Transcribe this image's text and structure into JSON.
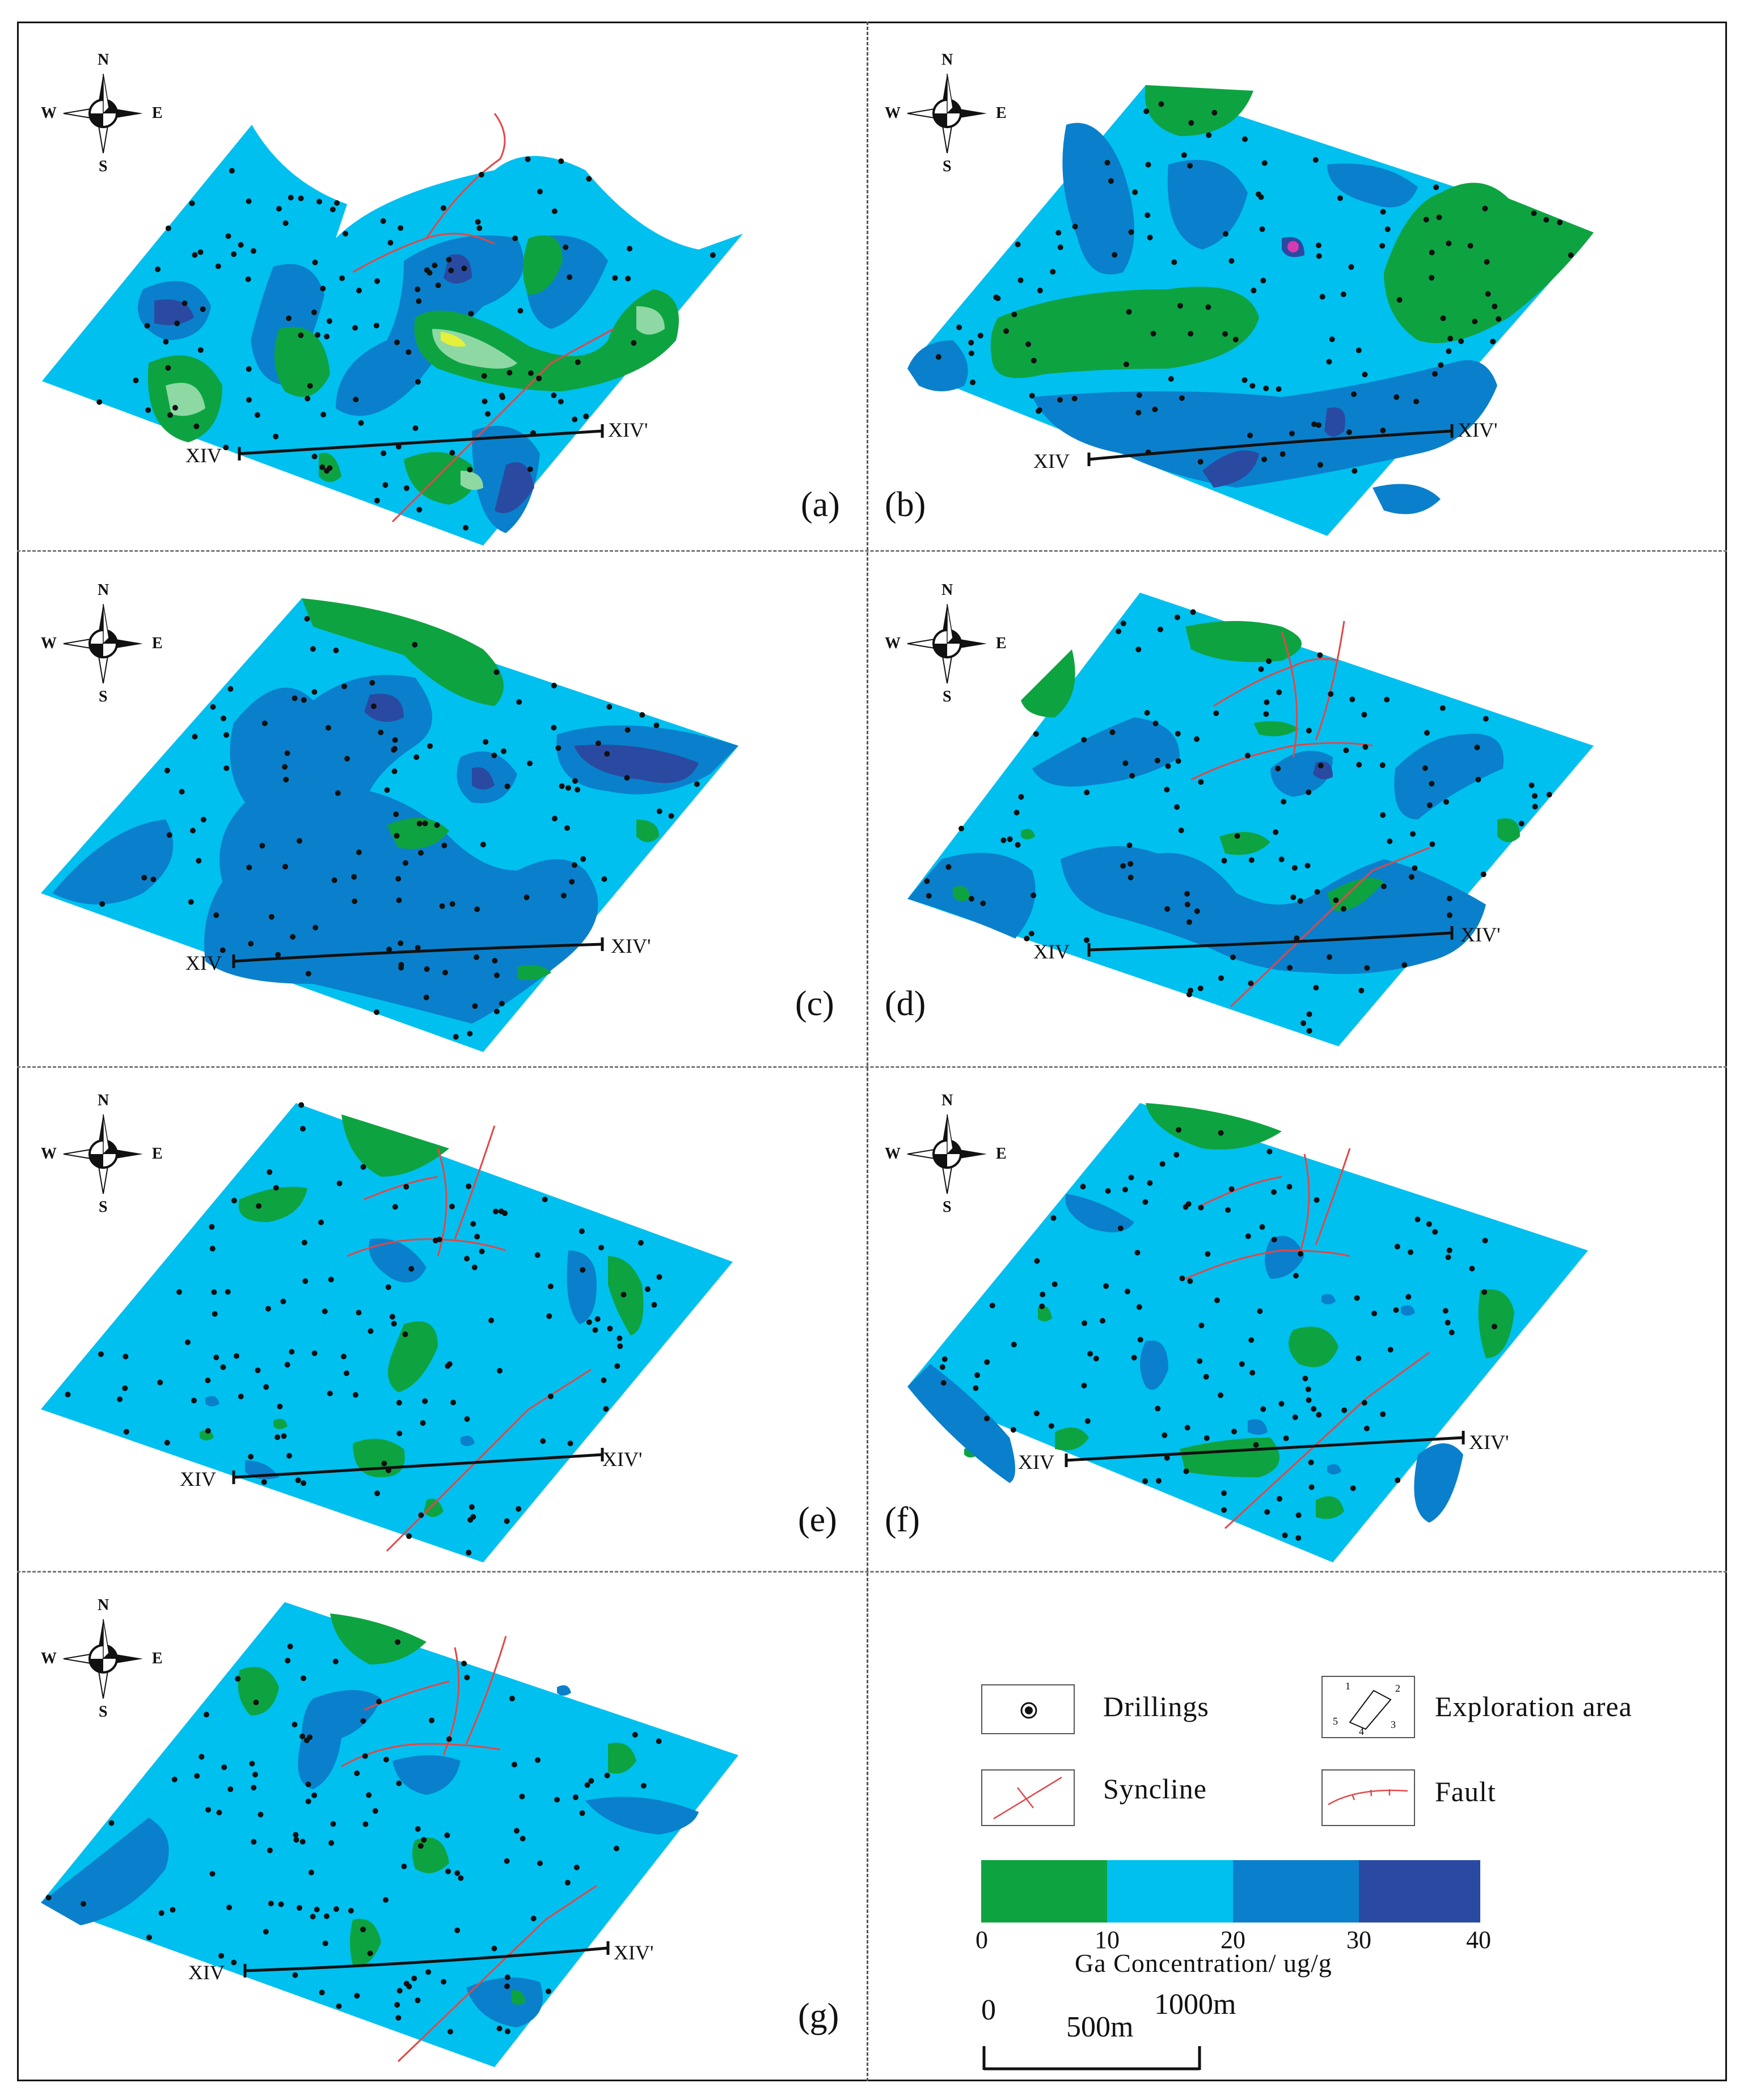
{
  "compass": {
    "n": "N",
    "s": "S",
    "w": "W",
    "e": "E"
  },
  "section_line": {
    "start": "XIV",
    "end": "XIV'"
  },
  "panels": [
    {
      "label": "(a)"
    },
    {
      "label": "(b)"
    },
    {
      "label": "(c)"
    },
    {
      "label": "(d)"
    },
    {
      "label": "(e)"
    },
    {
      "label": "(f)"
    },
    {
      "label": "(g)"
    }
  ],
  "legend": {
    "drillings": "Drillings",
    "exploration_area": "Exploration area",
    "syncline": "Syncline",
    "fault": "Fault",
    "corner_numbers": [
      "1",
      "2",
      "3",
      "4",
      "5"
    ],
    "colorbar": {
      "title": "Ga Concentration/ ug/g",
      "ticks": [
        "0",
        "10",
        "20",
        "30",
        "40"
      ],
      "classes": [
        {
          "range": [
            0,
            10
          ],
          "color": "#0ea341"
        },
        {
          "range": [
            10,
            20
          ],
          "color": "#00c0f0"
        },
        {
          "range": [
            20,
            30
          ],
          "color": "#0a80cc"
        },
        {
          "range": [
            30,
            40
          ],
          "color": "#2a4aa2"
        }
      ]
    },
    "scale": {
      "labels": [
        "0",
        "500m",
        "1000m"
      ]
    }
  },
  "colors": {
    "green": "#0ea341",
    "cyan": "#00c0f0",
    "mid_blue": "#0a80cc",
    "dark_blue": "#2a4aa2",
    "yellow": "#e6ef3a",
    "pale_green": "#8ed8a4",
    "fault": "#e04848",
    "drill": "#111111"
  }
}
